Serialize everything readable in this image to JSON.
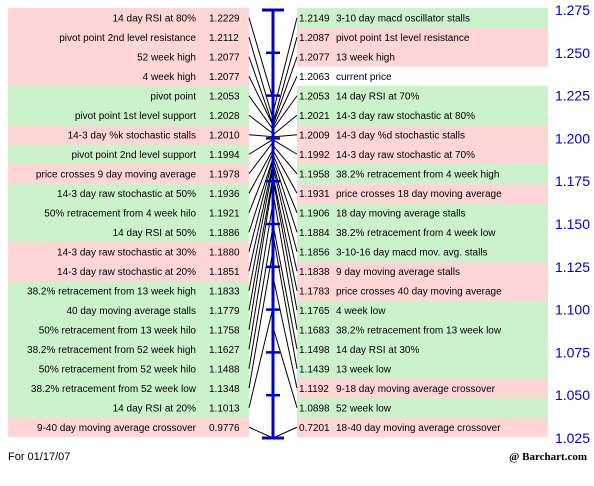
{
  "chart_data": {
    "type": "table",
    "title": "",
    "axis": {
      "ticks": [
        "1.275",
        "1.250",
        "1.225",
        "1.200",
        "1.175",
        "1.150",
        "1.125",
        "1.100",
        "1.075",
        "1.050",
        "1.025"
      ],
      "ylim": [
        1.025,
        1.275
      ]
    },
    "colors": {
      "green": "#ccf2cc",
      "pink": "#ffd6d6",
      "white": "#ffffff",
      "axis": "#0000cc",
      "line": "#000000"
    },
    "left": [
      {
        "label": "14 day RSI at 80%",
        "value": "1.2229",
        "color": "pink"
      },
      {
        "label": "pivot point 2nd level resistance",
        "value": "1.2112",
        "color": "pink"
      },
      {
        "label": "52 week high",
        "value": "1.2077",
        "color": "pink"
      },
      {
        "label": "4 week high",
        "value": "1.2077",
        "color": "pink"
      },
      {
        "label": "pivot point",
        "value": "1.2053",
        "color": "green"
      },
      {
        "label": "pivot point 1st level support",
        "value": "1.2028",
        "color": "green"
      },
      {
        "label": "14-3 day %k stochastic stalls",
        "value": "1.2010",
        "color": "pink"
      },
      {
        "label": "pivot point 2nd level support",
        "value": "1.1994",
        "color": "green"
      },
      {
        "label": "price crosses 9 day moving average",
        "value": "1.1978",
        "color": "pink"
      },
      {
        "label": "14-3 day raw stochastic at 50%",
        "value": "1.1936",
        "color": "green"
      },
      {
        "label": "50% retracement from 4 week hilo",
        "value": "1.1921",
        "color": "green"
      },
      {
        "label": "14 day RSI at 50%",
        "value": "1.1886",
        "color": "green"
      },
      {
        "label": "14-3 day raw stochastic at 30%",
        "value": "1.1880",
        "color": "pink"
      },
      {
        "label": "14-3 day raw stochastic at 20%",
        "value": "1.1851",
        "color": "pink"
      },
      {
        "label": "38.2% retracement from 13 week high",
        "value": "1.1833",
        "color": "green"
      },
      {
        "label": "40 day moving average stalls",
        "value": "1.1779",
        "color": "green"
      },
      {
        "label": "50% retracement from 13 week hilo",
        "value": "1.1758",
        "color": "green"
      },
      {
        "label": "38.2% retracement from 52 week high",
        "value": "1.1627",
        "color": "green"
      },
      {
        "label": "50% retracement from 52 week hilo",
        "value": "1.1488",
        "color": "green"
      },
      {
        "label": "38.2% retracement from 52 week low",
        "value": "1.1348",
        "color": "green"
      },
      {
        "label": "14 day RSI at 20%",
        "value": "1.1013",
        "color": "green"
      },
      {
        "label": "9-40 day moving average crossover",
        "value": "0.9776",
        "color": "pink"
      }
    ],
    "right": [
      {
        "label": "3-10 day macd oscillator stalls",
        "value": "1.2149",
        "color": "green"
      },
      {
        "label": "pivot point 1st level resistance",
        "value": "1.2087",
        "color": "pink"
      },
      {
        "label": "13 week high",
        "value": "1.2077",
        "color": "pink"
      },
      {
        "label": "current price",
        "value": "1.2063",
        "color": "white"
      },
      {
        "label": "14 day RSI at 70%",
        "value": "1.2053",
        "color": "green"
      },
      {
        "label": "14-3 day raw stochastic at 80%",
        "value": "1.2021",
        "color": "green"
      },
      {
        "label": "14-3 day %d stochastic stalls",
        "value": "1.2009",
        "color": "pink"
      },
      {
        "label": "14-3 day raw stochastic at 70%",
        "value": "1.1992",
        "color": "pink"
      },
      {
        "label": "38.2% retracement from 4 week high",
        "value": "1.1958",
        "color": "green"
      },
      {
        "label": "price crosses 18 day moving average",
        "value": "1.1931",
        "color": "pink"
      },
      {
        "label": "18 day moving average stalls",
        "value": "1.1906",
        "color": "green"
      },
      {
        "label": "38.2% retracement from 4 week low",
        "value": "1.1884",
        "color": "green"
      },
      {
        "label": "3-10-16 day macd mov. avg. stalls",
        "value": "1.1856",
        "color": "green"
      },
      {
        "label": "9 day moving average stalls",
        "value": "1.1838",
        "color": "pink"
      },
      {
        "label": "price crosses 40 day moving average",
        "value": "1.1783",
        "color": "pink"
      },
      {
        "label": "4 week low",
        "value": "1.1765",
        "color": "green"
      },
      {
        "label": "38.2% retracement from 13 week low",
        "value": "1.1683",
        "color": "green"
      },
      {
        "label": "14 day RSI at 30%",
        "value": "1.1498",
        "color": "green"
      },
      {
        "label": "13 week low",
        "value": "1.1439",
        "color": "green"
      },
      {
        "label": "9-18 day moving average crossover",
        "value": "1.1192",
        "color": "pink"
      },
      {
        "label": "52 week low",
        "value": "1.0898",
        "color": "green"
      },
      {
        "label": "18-40 day moving average crossover",
        "value": "0.7201",
        "color": "pink"
      }
    ]
  },
  "footer": {
    "date": "For 01/17/07",
    "source": "@ Barchart.com"
  }
}
